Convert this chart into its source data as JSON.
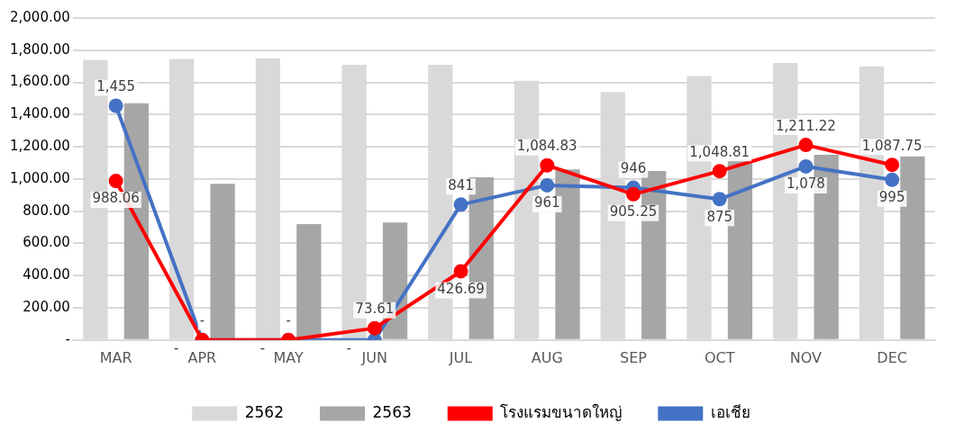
{
  "chart_data": {
    "type": "bar",
    "categories": [
      "MAR",
      "APR",
      "MAY",
      "JUN",
      "JUL",
      "AUG",
      "SEP",
      "OCT",
      "NOV",
      "DEC"
    ],
    "series": [
      {
        "name": "2562",
        "color": "#d9d9d9",
        "values": [
          1740,
          1745,
          1750,
          1710,
          1710,
          1610,
          1540,
          1640,
          1720,
          1700
        ]
      },
      {
        "name": "2563",
        "color": "#a6a6a6",
        "values": [
          1470,
          970,
          720,
          730,
          1010,
          1060,
          1050,
          1120,
          1150,
          1140
        ]
      },
      {
        "name": "โรงแรมขนาดใหญ่",
        "type": "line",
        "color": "#ff0000",
        "values": [
          988.06,
          0,
          0,
          73.61,
          426.69,
          1084.83,
          905.25,
          1048.81,
          1211.22,
          1087.75
        ],
        "value_labels": [
          "988.06",
          "-",
          "-",
          "73.61",
          "426.69",
          "1,084.83",
          "905.25",
          "1,048.81",
          "1,211.22",
          "1,087.75"
        ]
      },
      {
        "name": "เอเชีย",
        "type": "line",
        "color": "#4472c4",
        "values": [
          1455,
          0,
          0,
          0,
          841,
          961,
          946,
          875,
          1078,
          995
        ],
        "value_labels": [
          "1,455",
          "-",
          "-",
          "-",
          "841",
          "961",
          "946",
          "875",
          "1,078",
          "995"
        ]
      }
    ],
    "ylim": [
      0,
      2000
    ],
    "yticks": [
      {
        "value": 0,
        "label": "-"
      },
      {
        "value": 200,
        "label": "200.00"
      },
      {
        "value": 400,
        "label": "400.00"
      },
      {
        "value": 600,
        "label": "600.00"
      },
      {
        "value": 800,
        "label": "800.00"
      },
      {
        "value": 1000,
        "label": "1,000.00"
      },
      {
        "value": 1200,
        "label": "1,200.00"
      },
      {
        "value": 1400,
        "label": "1,400.00"
      },
      {
        "value": 1600,
        "label": "1,600.00"
      },
      {
        "value": 1800,
        "label": "1,800.00"
      },
      {
        "value": 2000,
        "label": "2,000.00"
      }
    ],
    "grid": "y",
    "legend": "bottom",
    "marker": "circle"
  }
}
